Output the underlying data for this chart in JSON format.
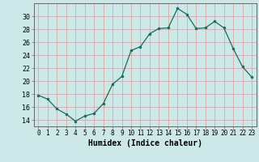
{
  "x": [
    0,
    1,
    2,
    3,
    4,
    5,
    6,
    7,
    8,
    9,
    10,
    11,
    12,
    13,
    14,
    15,
    16,
    17,
    18,
    19,
    20,
    21,
    22,
    23
  ],
  "y": [
    17.8,
    17.2,
    15.7,
    14.9,
    13.8,
    14.6,
    15.0,
    16.5,
    19.5,
    20.7,
    24.7,
    25.3,
    27.3,
    28.1,
    28.2,
    31.2,
    30.3,
    28.1,
    28.2,
    29.2,
    28.2,
    25.0,
    22.2,
    20.6
  ],
  "xlabel": "Humidex (Indice chaleur)",
  "bg_color": "#cce8e8",
  "line_color": "#1a6b5a",
  "marker_color": "#1a6b5a",
  "grid_major_color": "#c0b8b8",
  "grid_minor_color": "#d4e8e8",
  "ylim": [
    13,
    32
  ],
  "yticks": [
    14,
    16,
    18,
    20,
    22,
    24,
    26,
    28,
    30
  ],
  "xticks": [
    0,
    1,
    2,
    3,
    4,
    5,
    6,
    7,
    8,
    9,
    10,
    11,
    12,
    13,
    14,
    15,
    16,
    17,
    18,
    19,
    20,
    21,
    22,
    23
  ],
  "xlabel_fontsize": 7,
  "tick_fontsize": 5.5
}
